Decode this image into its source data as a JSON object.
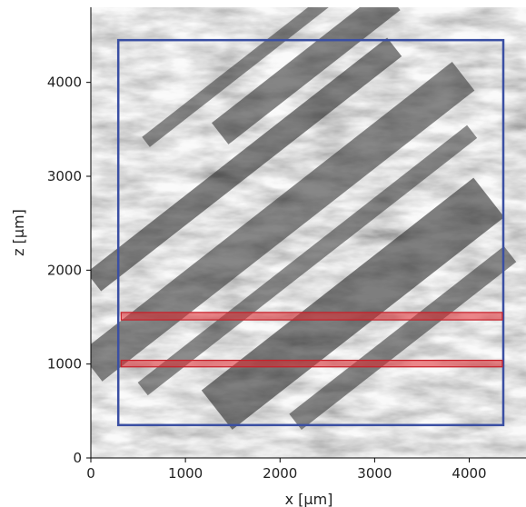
{
  "chart_data": {
    "type": "image",
    "xlabel": "x [μm]",
    "ylabel": "z [μm]",
    "xlim": [
      0,
      4600
    ],
    "ylim": [
      0,
      4800
    ],
    "x_ticks": [
      0,
      1000,
      2000,
      3000,
      4000
    ],
    "x_tick_labels": [
      "0",
      "1000",
      "2000",
      "3000",
      "4000"
    ],
    "y_ticks": [
      0,
      1000,
      2000,
      3000,
      4000
    ],
    "y_tick_labels": [
      "0",
      "1000",
      "2000",
      "3000",
      "4000"
    ],
    "grid": false,
    "regions": [
      {
        "kind": "outline",
        "color": "#3a4fa3",
        "x": [
          290,
          4360
        ],
        "z": [
          350,
          4450
        ]
      },
      {
        "kind": "band",
        "color": "#e0282d",
        "x": [
          320,
          4350
        ],
        "z": [
          1470,
          1550
        ]
      },
      {
        "kind": "band",
        "color": "#e0282d",
        "x": [
          320,
          4350
        ],
        "z": [
          970,
          1040
        ]
      }
    ]
  },
  "colors": {
    "outline": "#3a4fa3",
    "band_stroke": "#c8202a",
    "band_fill": "#e0282d",
    "image_light": "#eeeeee",
    "image_dark": "#222222"
  }
}
